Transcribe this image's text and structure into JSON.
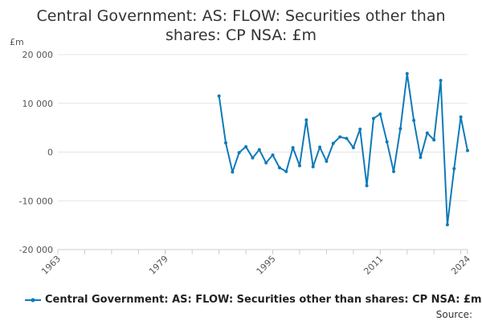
{
  "chart_data": {
    "type": "line",
    "title": "Central Government: AS: FLOW: Securities other than shares: CP NSA: £m",
    "ylabel": "£m",
    "xlabel": "",
    "xlim": [
      1963,
      2024
    ],
    "ylim": [
      -20000,
      20000
    ],
    "x_ticks": [
      1963,
      1979,
      1995,
      2011,
      2024
    ],
    "y_ticks": [
      {
        "value": 20000,
        "label": "20 000"
      },
      {
        "value": 10000,
        "label": "10 000"
      },
      {
        "value": 0,
        "label": "0"
      },
      {
        "value": -10000,
        "label": "-10 000"
      },
      {
        "value": -20000,
        "label": "-20 000"
      }
    ],
    "grid": true,
    "legend_position": "bottom",
    "color": "#0f7ab8",
    "series": [
      {
        "name": "Central Government: AS: FLOW: Securities other than shares: CP NSA: £m",
        "x": [
          1987,
          1988,
          1989,
          1990,
          1991,
          1992,
          1993,
          1994,
          1995,
          1996,
          1997,
          1998,
          1999,
          2000,
          2001,
          2002,
          2003,
          2004,
          2005,
          2006,
          2007,
          2008,
          2009,
          2010,
          2011,
          2012,
          2013,
          2014,
          2015,
          2016,
          2017,
          2018,
          2019,
          2020,
          2021,
          2022,
          2023,
          2024
        ],
        "values": [
          11500,
          1900,
          -4100,
          -100,
          1100,
          -1200,
          500,
          -2200,
          -600,
          -3200,
          -4000,
          900,
          -2800,
          6600,
          -3000,
          1000,
          -1900,
          1800,
          3100,
          2800,
          900,
          4700,
          -6900,
          6900,
          7800,
          2100,
          -4000,
          4800,
          16100,
          6500,
          -1100,
          3900,
          2500,
          14700,
          -14900,
          -3400,
          7200,
          300
        ]
      }
    ]
  },
  "legend": {
    "label": "Central Government: AS: FLOW: Securities other than shares: CP NSA: £m"
  },
  "source_label": "Source:"
}
